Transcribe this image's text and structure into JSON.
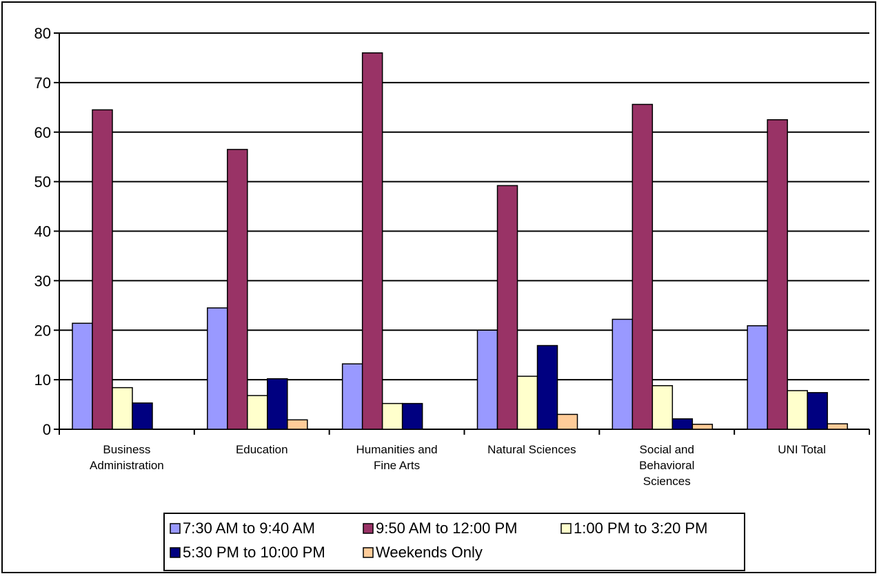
{
  "chart_data": {
    "type": "bar",
    "categories": [
      [
        "Business",
        "Administration"
      ],
      [
        "Education"
      ],
      [
        "Humanities and",
        "Fine Arts"
      ],
      [
        "Natural Sciences"
      ],
      [
        "Social and",
        "Behavioral",
        "Sciences"
      ],
      [
        "UNI Total"
      ]
    ],
    "series": [
      {
        "name": "7:30 AM to 9:40 AM",
        "color": "#9999FF",
        "values": [
          21.4,
          24.5,
          13.2,
          20.0,
          22.2,
          20.9
        ]
      },
      {
        "name": "9:50 AM to 12:00 PM",
        "color": "#993366",
        "values": [
          64.5,
          56.5,
          76.0,
          49.2,
          65.6,
          62.5
        ]
      },
      {
        "name": "1:00 PM to 3:20 PM",
        "color": "#FFFFCC",
        "values": [
          8.4,
          6.8,
          5.2,
          10.7,
          8.8,
          7.8
        ]
      },
      {
        "name": "5:30 PM to 10:00 PM",
        "color": "#000080",
        "values": [
          5.3,
          10.2,
          5.2,
          16.9,
          2.1,
          7.4
        ]
      },
      {
        "name": "Weekends Only",
        "color": "#FFCC99",
        "values": [
          0,
          1.9,
          0,
          3.0,
          1.0,
          1.1
        ]
      }
    ],
    "yticks": [
      "0",
      "10",
      "20",
      "30",
      "40",
      "50",
      "60",
      "70",
      "80"
    ],
    "ylim": [
      0,
      80
    ],
    "grid": true,
    "legend_position": "bottom",
    "title": "",
    "xlabel": "",
    "ylabel": ""
  }
}
